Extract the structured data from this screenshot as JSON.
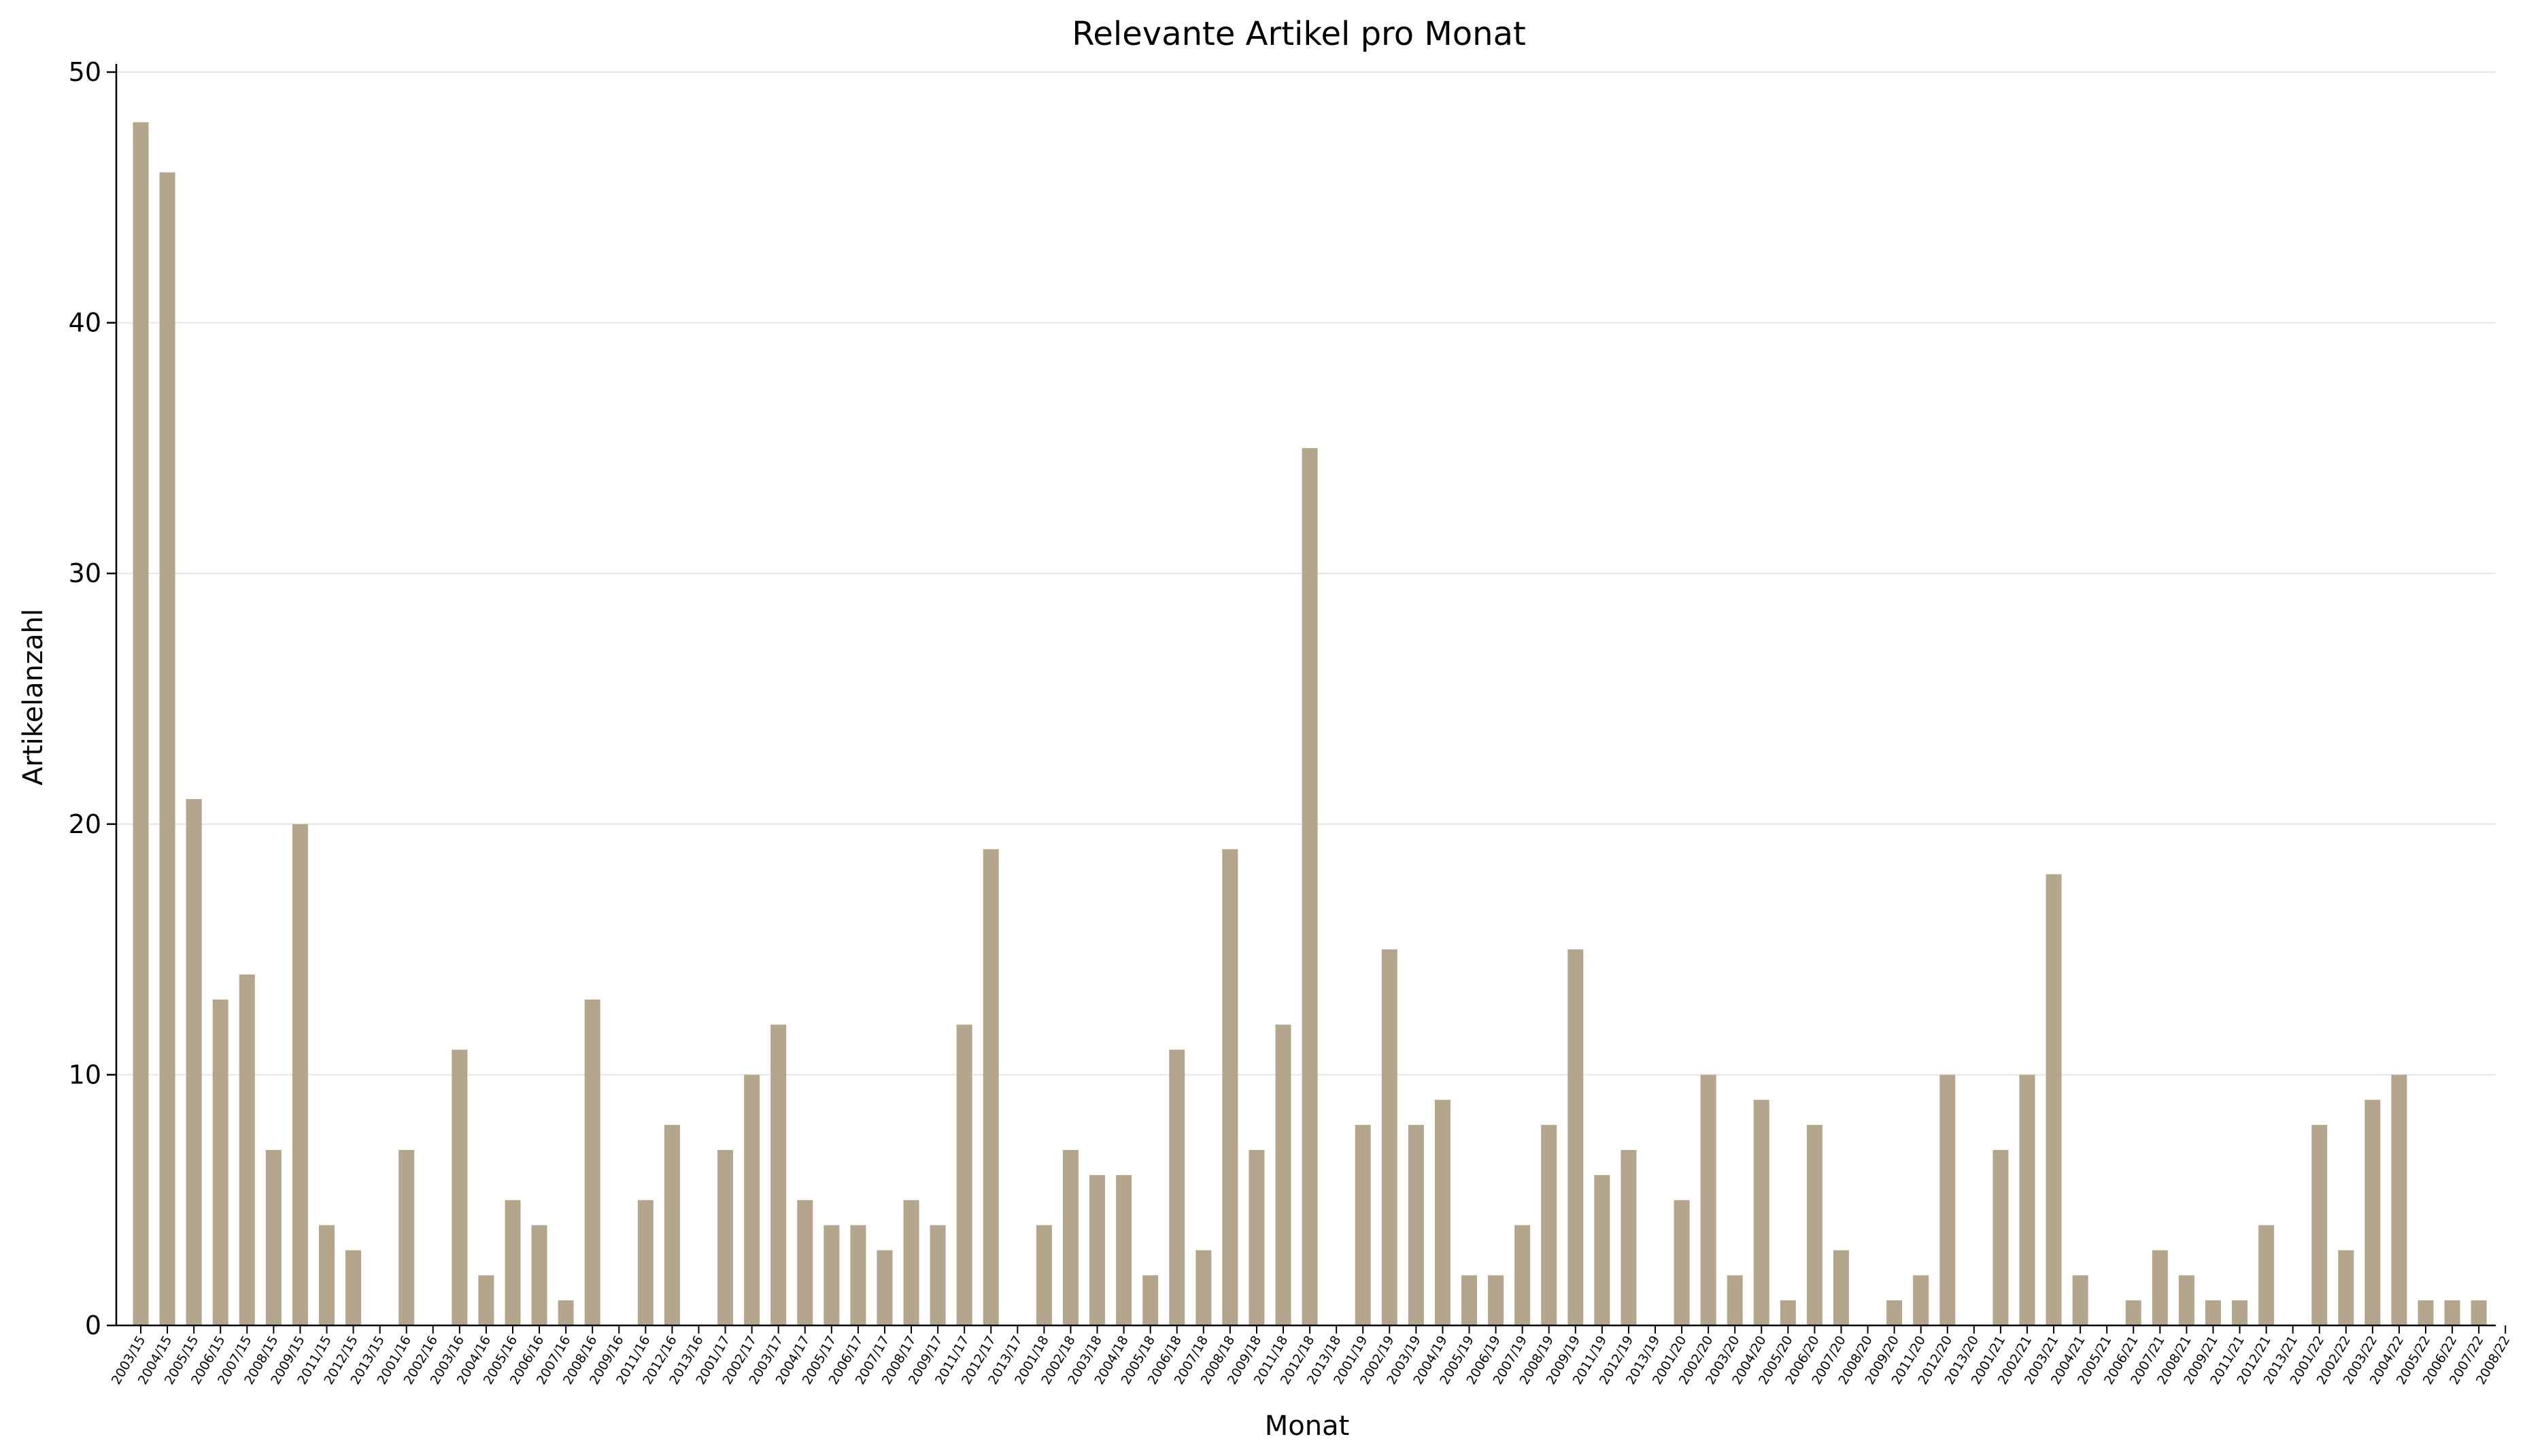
{
  "chart_data": {
    "type": "bar",
    "title": "Relevante Artikel pro Monat",
    "xlabel": "Monat",
    "ylabel": "Artikelanzahl",
    "ylim": [
      0,
      50
    ],
    "yticks": [
      0,
      10,
      20,
      30,
      40,
      50
    ],
    "grid": "horizontal",
    "bar_color": "#b3a68c",
    "categories": [
      "2003/15",
      "2004/15",
      "2005/15",
      "2006/15",
      "2007/15",
      "2008/15",
      "2009/15",
      "2011/15",
      "2012/15",
      "2013/15",
      "2001/16",
      "2002/16",
      "2003/16",
      "2004/16",
      "2005/16",
      "2006/16",
      "2007/16",
      "2008/16",
      "2009/16",
      "2011/16",
      "2012/16",
      "2013/16",
      "2001/17",
      "2002/17",
      "2003/17",
      "2004/17",
      "2005/17",
      "2006/17",
      "2007/17",
      "2008/17",
      "2009/17",
      "2011/17",
      "2012/17",
      "2013/17",
      "2001/18",
      "2002/18",
      "2003/18",
      "2004/18",
      "2005/18",
      "2006/18",
      "2007/18",
      "2008/18",
      "2009/18",
      "2011/18",
      "2012/18",
      "2013/18",
      "2001/19",
      "2002/19",
      "2003/19",
      "2004/19",
      "2005/19",
      "2006/19",
      "2007/19",
      "2008/19",
      "2009/19",
      "2011/19",
      "2012/19",
      "2013/19",
      "2001/20",
      "2002/20",
      "2003/20",
      "2004/20",
      "2005/20",
      "2006/20",
      "2007/20",
      "2008/20",
      "2009/20",
      "2011/20",
      "2012/20",
      "2013/20",
      "2001/21",
      "2002/21",
      "2003/21",
      "2004/21",
      "2005/21",
      "2006/21",
      "2007/21",
      "2008/21",
      "2009/21",
      "2011/21",
      "2012/21",
      "2013/21",
      "2001/22",
      "2002/22",
      "2003/22",
      "2004/22",
      "2005/22",
      "2006/22",
      "2007/22",
      "2008/22"
    ],
    "values": [
      48,
      46,
      21,
      13,
      14,
      7,
      20,
      4,
      3,
      0,
      7,
      0,
      11,
      2,
      5,
      4,
      1,
      13,
      0,
      5,
      8,
      0,
      7,
      10,
      12,
      5,
      4,
      4,
      3,
      5,
      4,
      12,
      19,
      0,
      4,
      7,
      6,
      6,
      2,
      11,
      3,
      19,
      7,
      12,
      35,
      0,
      8,
      15,
      8,
      9,
      2,
      2,
      4,
      8,
      15,
      6,
      7,
      0,
      5,
      10,
      2,
      9,
      1,
      8,
      3,
      0,
      1,
      2,
      10,
      0,
      7,
      10,
      18,
      2,
      0,
      1,
      3,
      2,
      1,
      1,
      4,
      0,
      8,
      3,
      9,
      10,
      1,
      1,
      1,
      0
    ]
  }
}
